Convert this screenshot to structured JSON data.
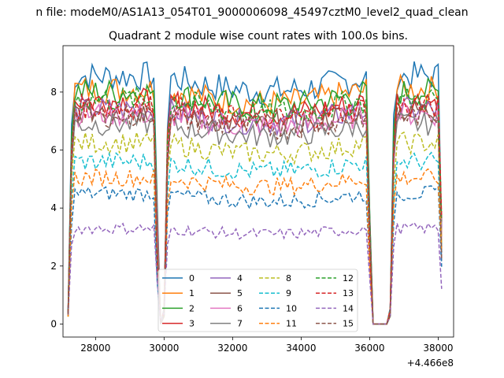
{
  "figure": {
    "suptitle": "n file: modeM0/AS1A13_054T01_9000006098_45497cztM0_level2_quad_clean",
    "offset_text": "+4.466e8"
  },
  "chart_data": {
    "type": "line",
    "title": "Quadrant 2 module wise count rates with 100.0s bins.",
    "xlabel": "",
    "ylabel": "",
    "xlim": [
      27050,
      38450
    ],
    "ylim": [
      -0.45,
      9.6
    ],
    "x_ticks": [
      28000,
      30000,
      32000,
      34000,
      36000,
      38000
    ],
    "x_tick_labels": [
      "28000",
      "30000",
      "32000",
      "34000",
      "36000",
      "38000"
    ],
    "y_ticks": [
      0,
      2,
      4,
      6,
      8
    ],
    "y_tick_labels": [
      "0",
      "2",
      "4",
      "6",
      "8"
    ],
    "x_offset": 446600000,
    "grid": false,
    "legend_position": "bottom-center",
    "legend_columns": 4,
    "bin_seconds": 100,
    "segments": [
      {
        "x_start": 27200,
        "x_end": 29800
      },
      {
        "x_start": 30000,
        "x_end": 36000
      },
      {
        "x_start": 36600,
        "x_end": 38100
      }
    ],
    "gap_x": [
      29900,
      36100,
      36500
    ],
    "series": [
      {
        "name": "0",
        "color": "#1f77b4",
        "style": "solid",
        "level": 8.55
      },
      {
        "name": "1",
        "color": "#ff7f0e",
        "style": "solid",
        "level": 8.1
      },
      {
        "name": "2",
        "color": "#2ca02c",
        "style": "solid",
        "level": 8.0
      },
      {
        "name": "3",
        "color": "#d62728",
        "style": "solid",
        "level": 7.7
      },
      {
        "name": "4",
        "color": "#9467bd",
        "style": "solid",
        "level": 7.4
      },
      {
        "name": "5",
        "color": "#8c564b",
        "style": "solid",
        "level": 7.35
      },
      {
        "name": "6",
        "color": "#e377c2",
        "style": "solid",
        "level": 7.25
      },
      {
        "name": "7",
        "color": "#7f7f7f",
        "style": "solid",
        "level": 6.9
      },
      {
        "name": "8",
        "color": "#bcbd22",
        "style": "dashed",
        "level": 6.25
      },
      {
        "name": "9",
        "color": "#17becf",
        "style": "dashed",
        "level": 5.6
      },
      {
        "name": "10",
        "color": "#1f77b4",
        "style": "dashed",
        "level": 4.5
      },
      {
        "name": "11",
        "color": "#ff7f0e",
        "style": "dashed",
        "level": 5.05
      },
      {
        "name": "12",
        "color": "#2ca02c",
        "style": "dashed",
        "level": 7.75
      },
      {
        "name": "13",
        "color": "#d62728",
        "style": "dashed",
        "level": 7.5
      },
      {
        "name": "14",
        "color": "#9467bd",
        "style": "dashed",
        "level": 3.3
      },
      {
        "name": "15",
        "color": "#8c564b",
        "style": "dashed",
        "level": 7.2
      }
    ]
  }
}
